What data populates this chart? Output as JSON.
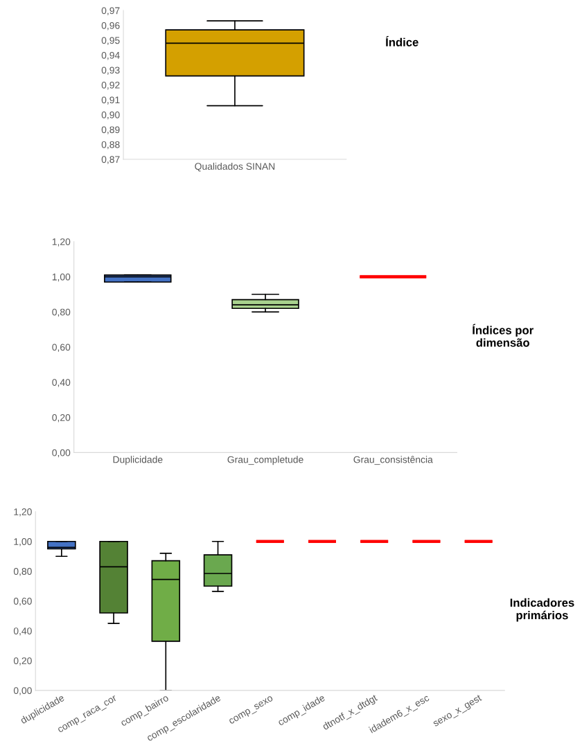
{
  "chart_data": [
    {
      "type": "box",
      "categories": [
        "Qualidados SINAN"
      ],
      "boxes": [
        {
          "low": 0.906,
          "q1": 0.926,
          "median": 0.948,
          "q3": 0.957,
          "high": 0.963
        }
      ],
      "colors": [
        "#d4a000"
      ],
      "ylim": [
        0.87,
        0.97
      ],
      "yticks": [
        {
          "value": 0.87,
          "label": "0,87"
        },
        {
          "value": 0.88,
          "label": "0,88"
        },
        {
          "value": 0.89,
          "label": "0,89"
        },
        {
          "value": 0.9,
          "label": "0,90"
        },
        {
          "value": 0.91,
          "label": "0,91"
        },
        {
          "value": 0.92,
          "label": "0,92"
        },
        {
          "value": 0.93,
          "label": "0,93"
        },
        {
          "value": 0.94,
          "label": "0,94"
        },
        {
          "value": 0.95,
          "label": "0,95"
        },
        {
          "value": 0.96,
          "label": "0,96"
        },
        {
          "value": 0.97,
          "label": "0,97"
        }
      ],
      "annotations": [
        "Índice"
      ]
    },
    {
      "type": "box",
      "categories": [
        "Duplicidade",
        "Grau_completude",
        "Grau_consistência"
      ],
      "boxes": [
        {
          "low": 0.97,
          "q1": 0.97,
          "median": 1.0,
          "q3": 1.01,
          "high": 1.01
        },
        {
          "low": 0.8,
          "q1": 0.82,
          "median": 0.84,
          "q3": 0.87,
          "high": 0.9
        },
        {
          "low": 1.0,
          "q1": 1.0,
          "median": 1.0,
          "q3": 1.0,
          "high": 1.0
        }
      ],
      "colors": [
        "#4472c4",
        "#a9d18e",
        "#ff0000"
      ],
      "ylim": [
        0,
        1.2
      ],
      "yticks": [
        {
          "value": 0,
          "label": "0,00"
        },
        {
          "value": 0.2,
          "label": "0,20"
        },
        {
          "value": 0.4,
          "label": "0,40"
        },
        {
          "value": 0.6,
          "label": "0,60"
        },
        {
          "value": 0.8,
          "label": "0,80"
        },
        {
          "value": 1.0,
          "label": "1,00"
        },
        {
          "value": 1.2,
          "label": "1,20"
        }
      ],
      "annotations": [
        "Índices por\ndimensão"
      ]
    },
    {
      "type": "box",
      "categories": [
        "duplicidade",
        "comp_raca_cor",
        "comp_bairro",
        "comp_escolaridade",
        "comp_sexo",
        "comp_idade",
        "dtnotf_x_dtdgt",
        "idadem6_x_esc",
        "sexo_x_gest"
      ],
      "boxes": [
        {
          "low": 0.9,
          "q1": 0.95,
          "median": 0.96,
          "q3": 1.0,
          "high": 1.0
        },
        {
          "low": 0.45,
          "q1": 0.52,
          "median": 0.83,
          "q3": 1.0,
          "high": 1.0
        },
        {
          "low": 0.0,
          "q1": 0.33,
          "median": 0.745,
          "q3": 0.87,
          "high": 0.92
        },
        {
          "low": 0.665,
          "q1": 0.7,
          "median": 0.785,
          "q3": 0.91,
          "high": 1.0
        },
        {
          "low": 1.0,
          "q1": 1.0,
          "median": 1.0,
          "q3": 1.0,
          "high": 1.0
        },
        {
          "low": 1.0,
          "q1": 1.0,
          "median": 1.0,
          "q3": 1.0,
          "high": 1.0
        },
        {
          "low": 1.0,
          "q1": 1.0,
          "median": 1.0,
          "q3": 1.0,
          "high": 1.0
        },
        {
          "low": 1.0,
          "q1": 1.0,
          "median": 1.0,
          "q3": 1.0,
          "high": 1.0
        },
        {
          "low": 1.0,
          "q1": 1.0,
          "median": 1.0,
          "q3": 1.0,
          "high": 1.0
        }
      ],
      "colors": [
        "#4472c4",
        "#548235",
        "#70ad47",
        "#6aa84f",
        "#ff0000",
        "#ff0000",
        "#ff0000",
        "#ff0000",
        "#ff0000"
      ],
      "ylim": [
        0,
        1.2
      ],
      "yticks": [
        {
          "value": 0,
          "label": "0,00"
        },
        {
          "value": 0.2,
          "label": "0,20"
        },
        {
          "value": 0.4,
          "label": "0,40"
        },
        {
          "value": 0.6,
          "label": "0,60"
        },
        {
          "value": 0.8,
          "label": "0,80"
        },
        {
          "value": 1.0,
          "label": "1,00"
        },
        {
          "value": 1.2,
          "label": "1,20"
        }
      ],
      "annotations": [
        "Indicadores\nprimários"
      ]
    }
  ]
}
